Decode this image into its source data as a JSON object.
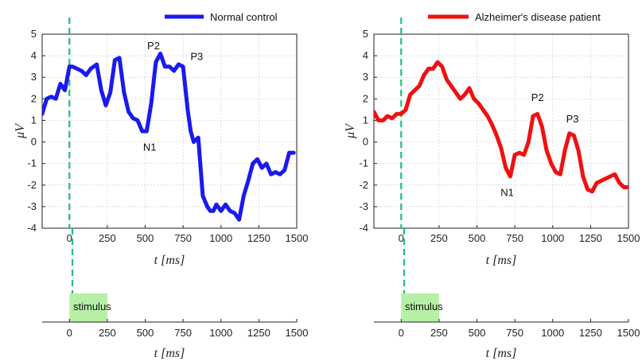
{
  "chart_data": [
    {
      "type": "line",
      "legend": "Normal control",
      "legend_position": "top-right",
      "color": "#1a1aee",
      "xlabel": "t [ms]",
      "ylabel": "μV",
      "xlim": [
        -180,
        1500
      ],
      "ylim": [
        -4,
        5
      ],
      "xticks": [
        0,
        250,
        500,
        750,
        1000,
        1250,
        1500
      ],
      "yticks": [
        -4,
        -3,
        -2,
        -1,
        0,
        1,
        2,
        3,
        4,
        5
      ],
      "grid": true,
      "stimulus_onset": 0,
      "annotations": [
        {
          "text": "P2",
          "x": 555,
          "y": 4.3
        },
        {
          "text": "P3",
          "x": 840,
          "y": 3.8
        },
        {
          "text": "N1",
          "x": 530,
          "y": -0.4
        }
      ],
      "x": [
        -180,
        -150,
        -120,
        -90,
        -60,
        -30,
        0,
        20,
        50,
        80,
        110,
        140,
        180,
        210,
        240,
        270,
        300,
        330,
        360,
        390,
        420,
        450,
        480,
        510,
        540,
        570,
        600,
        630,
        660,
        690,
        720,
        750,
        780,
        800,
        820,
        850,
        880,
        910,
        930,
        950,
        970,
        1000,
        1030,
        1060,
        1090,
        1120,
        1150,
        1180,
        1210,
        1240,
        1270,
        1300,
        1330,
        1360,
        1390,
        1420,
        1450,
        1480
      ],
      "y": [
        1.3,
        2.0,
        2.1,
        2.0,
        2.7,
        2.4,
        3.5,
        3.5,
        3.4,
        3.3,
        3.1,
        3.4,
        3.6,
        2.4,
        1.7,
        2.3,
        3.8,
        3.9,
        2.3,
        1.4,
        1.1,
        1.0,
        0.5,
        0.5,
        1.8,
        3.7,
        4.1,
        3.5,
        3.5,
        3.3,
        3.6,
        3.5,
        1.5,
        0.5,
        0.0,
        0.2,
        -2.5,
        -3.0,
        -3.2,
        -3.2,
        -2.9,
        -3.2,
        -2.9,
        -3.2,
        -3.3,
        -3.6,
        -2.5,
        -1.8,
        -1.0,
        -0.8,
        -1.2,
        -1.0,
        -1.5,
        -1.4,
        -1.5,
        -1.3,
        -0.5,
        -0.5
      ]
    },
    {
      "type": "line",
      "legend": "Alzheimer's disease patient",
      "legend_position": "top-right",
      "color": "#ee1111",
      "xlabel": "t [ms]",
      "ylabel": "μV",
      "xlim": [
        -180,
        1500
      ],
      "ylim": [
        -4,
        5
      ],
      "xticks": [
        0,
        250,
        500,
        750,
        1000,
        1250,
        1500
      ],
      "yticks": [
        -4,
        -3,
        -2,
        -1,
        0,
        1,
        2,
        3,
        4,
        5
      ],
      "grid": true,
      "stimulus_onset": 0,
      "annotations": [
        {
          "text": "P2",
          "x": 900,
          "y": 1.9
        },
        {
          "text": "P3",
          "x": 1130,
          "y": 0.9
        },
        {
          "text": "N1",
          "x": 700,
          "y": -2.5
        }
      ],
      "x": [
        -180,
        -150,
        -120,
        -90,
        -60,
        -30,
        0,
        30,
        60,
        90,
        120,
        150,
        180,
        210,
        240,
        270,
        300,
        330,
        360,
        390,
        420,
        450,
        480,
        510,
        540,
        570,
        600,
        630,
        660,
        690,
        720,
        750,
        780,
        810,
        840,
        870,
        900,
        930,
        960,
        990,
        1020,
        1050,
        1080,
        1110,
        1140,
        1170,
        1200,
        1230,
        1260,
        1290,
        1320,
        1350,
        1380,
        1410,
        1440,
        1470,
        1490
      ],
      "y": [
        1.4,
        1.0,
        1.0,
        1.2,
        1.1,
        1.3,
        1.3,
        1.5,
        2.2,
        2.4,
        2.6,
        3.1,
        3.4,
        3.4,
        3.7,
        3.5,
        2.9,
        2.6,
        2.3,
        2.0,
        2.2,
        2.5,
        2.0,
        1.8,
        1.5,
        1.2,
        0.8,
        0.3,
        -0.3,
        -1.2,
        -1.6,
        -0.6,
        -0.5,
        -0.6,
        0.0,
        1.2,
        1.3,
        0.7,
        -0.4,
        -1.0,
        -1.4,
        -1.5,
        -0.4,
        0.4,
        0.3,
        -0.4,
        -1.6,
        -2.2,
        -2.3,
        -1.9,
        -1.8,
        -1.7,
        -1.6,
        -1.5,
        -1.9,
        -2.1,
        -2.1
      ]
    }
  ],
  "stimulus": {
    "label": "stimulus",
    "start": 0,
    "end": 250,
    "color": "#b6f0a5",
    "xlabel": "t [ms]",
    "xticks": [
      0,
      250,
      500,
      750,
      1000,
      1250,
      1500
    ]
  }
}
